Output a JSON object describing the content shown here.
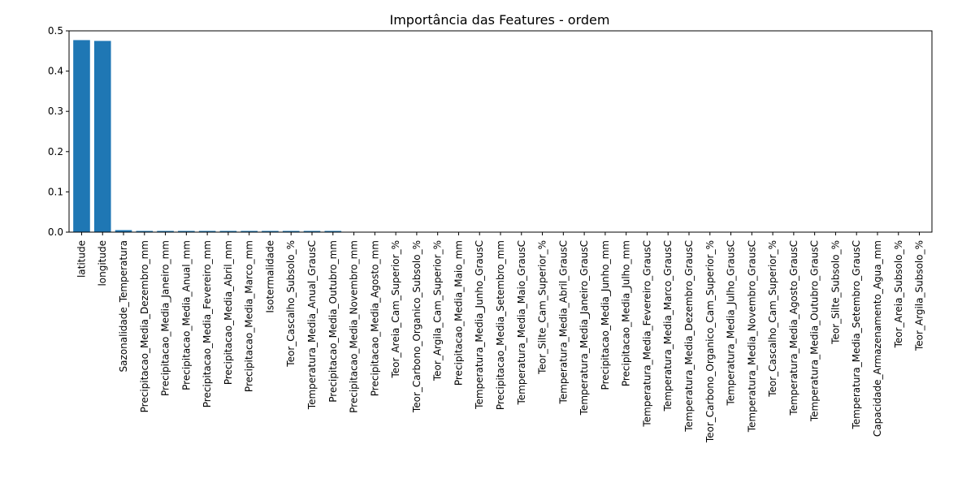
{
  "chart_data": {
    "type": "bar",
    "title": "Importância das Features - ordem",
    "xlabel": "",
    "ylabel": "",
    "ylim": [
      0,
      0.5
    ],
    "yticks": [
      0.0,
      0.1,
      0.2,
      0.3,
      0.4,
      0.5
    ],
    "ytick_labels": [
      "0.0",
      "0.1",
      "0.2",
      "0.3",
      "0.4",
      "0.5"
    ],
    "grid": false,
    "bar_color": "#1f77b4",
    "categories": [
      "latitude",
      "longitude",
      "Sazonalidade_Temperatura",
      "Precipitacao_Media_Dezembro_mm",
      "Precipitacao_Media_Janeiro_mm",
      "Precipitacao_Media_Anual_mm",
      "Precipitacao_Media_Fevereiro_mm",
      "Precipitacao_Media_Abril_mm",
      "Precipitacao_Media_Marco_mm",
      "Isotermalidade",
      "Teor_Cascalho_Subsolo_%",
      "Temperatura_Media_Anual_GrausC",
      "Precipitacao_Media_Outubro_mm",
      "Precipitacao_Media_Novembro_mm",
      "Precipitacao_Media_Agosto_mm",
      "Teor_Areia_Cam_Superior_%",
      "Teor_Carbono_Organico_Subsolo_%",
      "Teor_Argila_Cam_Superior_%",
      "Precipitacao_Media_Maio_mm",
      "Temperatura_Media_Junho_GrausC",
      "Precipitacao_Media_Setembro_mm",
      "Temperatura_Media_Maio_GrausC",
      "Teor_Silte_Cam_Superior_%",
      "Temperatura_Media_Abril_GrausC",
      "Temperatura_Media_Janeiro_GrausC",
      "Precipitacao_Media_Junho_mm",
      "Precipitacao_Media_Julho_mm",
      "Temperatura_Media_Fevereiro_GrausC",
      "Temperatura_Media_Marco_GrausC",
      "Temperatura_Media_Dezembro_GrausC",
      "Teor_Carbono_Organico_Cam_Superior_%",
      "Temperatura_Media_Julho_GrausC",
      "Temperatura_Media_Novembro_GrausC",
      "Teor_Cascalho_Cam_Superior_%",
      "Temperatura_Media_Agosto_GrausC",
      "Temperatura_Media_Outubro_GrausC",
      "Teor_Silte_Subsolo_%",
      "Temperatura_Media_Setembro_GrausC",
      "Capacidade_Armazenamento_Agua_mm",
      "Teor_Areia_Subsolo_%",
      "Teor_Argila_Subsolo_%"
    ],
    "values": [
      0.477,
      0.475,
      0.005,
      0.003,
      0.003,
      0.003,
      0.003,
      0.003,
      0.003,
      0.003,
      0.003,
      0.003,
      0.003,
      0.0,
      0.0,
      0.0,
      0.0,
      0.0,
      0.0,
      0.0,
      0.0,
      0.0,
      0.0,
      0.0,
      0.0,
      0.0,
      0.0,
      0.0,
      0.0,
      0.0,
      0.0,
      0.0,
      0.0,
      0.0,
      0.0,
      0.0,
      0.0,
      0.0,
      0.0,
      0.0,
      0.0
    ]
  }
}
